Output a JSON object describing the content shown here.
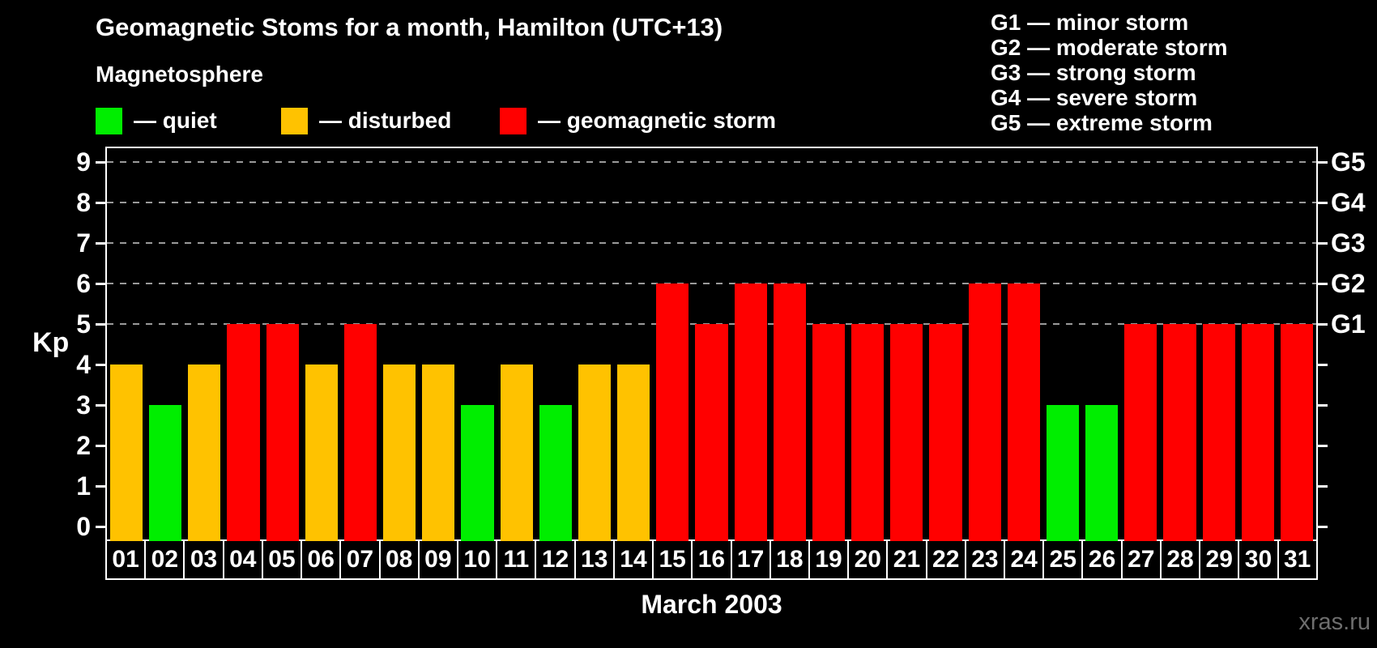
{
  "title": "Geomagnetic Stoms for a month, Hamilton (UTC+13)",
  "subtitle": "Magnetosphere",
  "legend": {
    "items": [
      {
        "key": "quiet",
        "label": "— quiet",
        "color": "#00ee00"
      },
      {
        "key": "disturbed",
        "label": "— disturbed",
        "color": "#ffc200"
      },
      {
        "key": "storm",
        "label": "— geomagnetic storm",
        "color": "#ff0000"
      }
    ]
  },
  "g_legend": [
    "G1 — minor storm",
    "G2 — moderate storm",
    "G3 — strong storm",
    "G4 — severe storm",
    "G5 — extreme storm"
  ],
  "axis": {
    "y_label": "Kp",
    "y_ticks": [
      0,
      1,
      2,
      3,
      4,
      5,
      6,
      7,
      8,
      9
    ]
  },
  "x_axis_title": "March 2003",
  "watermark": "xras.ru",
  "chart_data": {
    "type": "bar",
    "title": "Geomagnetic Stoms for a month, Hamilton (UTC+13)",
    "xlabel": "March 2003",
    "ylabel": "Kp",
    "ylim": [
      0,
      9
    ],
    "grid": "dashed horizontal at Kp 5-9",
    "legend_position": "top-left",
    "categories": [
      "01",
      "02",
      "03",
      "04",
      "05",
      "06",
      "07",
      "08",
      "09",
      "10",
      "11",
      "12",
      "13",
      "14",
      "15",
      "16",
      "17",
      "18",
      "19",
      "20",
      "21",
      "22",
      "23",
      "24",
      "25",
      "26",
      "27",
      "28",
      "29",
      "30",
      "31"
    ],
    "values": [
      4,
      3,
      4,
      5,
      5,
      4,
      5,
      4,
      4,
      3,
      4,
      3,
      4,
      4,
      6,
      5,
      6,
      6,
      5,
      5,
      5,
      5,
      6,
      6,
      3,
      3,
      5,
      5,
      5,
      5,
      5
    ],
    "states": [
      "disturbed",
      "quiet",
      "disturbed",
      "storm",
      "storm",
      "disturbed",
      "storm",
      "disturbed",
      "disturbed",
      "quiet",
      "disturbed",
      "quiet",
      "disturbed",
      "disturbed",
      "storm",
      "storm",
      "storm",
      "storm",
      "storm",
      "storm",
      "storm",
      "storm",
      "storm",
      "storm",
      "quiet",
      "quiet",
      "storm",
      "storm",
      "storm",
      "storm",
      "storm"
    ],
    "state_colors": {
      "quiet": "#00ee00",
      "disturbed": "#ffc200",
      "storm": "#ff0000"
    },
    "grid_levels_kp": [
      5,
      6,
      7,
      8,
      9
    ],
    "right_axis": [
      {
        "kp": 5,
        "label": "G1"
      },
      {
        "kp": 6,
        "label": "G2"
      },
      {
        "kp": 7,
        "label": "G3"
      },
      {
        "kp": 8,
        "label": "G4"
      },
      {
        "kp": 9,
        "label": "G5"
      }
    ]
  }
}
